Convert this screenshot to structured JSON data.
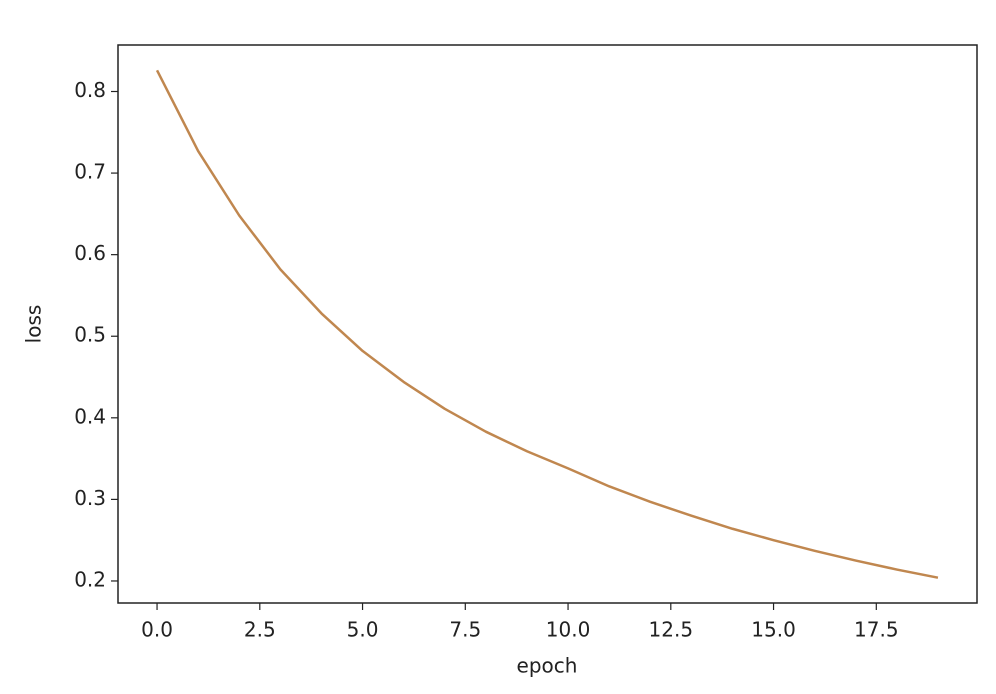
{
  "chart_data": {
    "type": "line",
    "x": [
      0,
      1,
      2,
      3,
      4,
      5,
      6,
      7,
      8,
      9,
      10,
      11,
      12,
      13,
      14,
      15,
      16,
      17,
      18,
      19
    ],
    "values": [
      0.826,
      0.727,
      0.648,
      0.582,
      0.528,
      0.482,
      0.444,
      0.411,
      0.383,
      0.359,
      0.338,
      0.316,
      0.297,
      0.28,
      0.264,
      0.25,
      0.237,
      0.225,
      0.214,
      0.204
    ],
    "color": "#c0874f",
    "x_label": "epoch",
    "y_label": "loss",
    "xlim": [
      -0.95,
      19.95
    ],
    "xticks": [
      {
        "value": 0,
        "label": "0.0"
      },
      2.5,
      {
        "value": 5,
        "label": "5.0"
      },
      7.5,
      {
        "value": 10,
        "label": "10.0"
      },
      12.5,
      {
        "value": 15,
        "label": "15.0"
      },
      17.5
    ],
    "ylim": [
      0.173,
      0.857
    ],
    "yticks": [
      0.2,
      0.3,
      0.4,
      0.5,
      0.6,
      0.7,
      0.8
    ],
    "grid": false
  }
}
